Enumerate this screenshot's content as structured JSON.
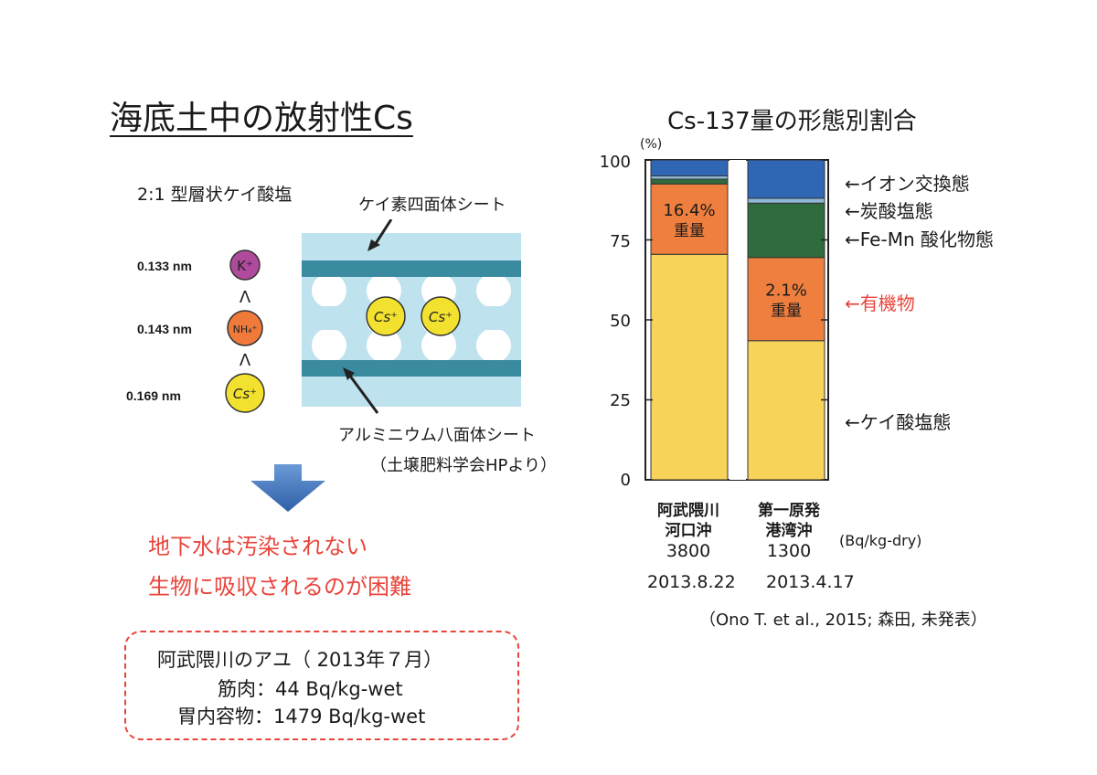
{
  "title": "海底土中の放射性Cs",
  "clay": {
    "subtitle": "2:1 型層状ケイ酸塩",
    "label_si": "ケイ素四面体シート",
    "label_al": "アルミニウム八面体シート",
    "source": "（土壌肥料学会HPより）",
    "ions": [
      {
        "size": "0.133 nm",
        "symbol": "K⁺",
        "color": "#b04a9c"
      },
      {
        "size": "0.143 nm",
        "symbol": "NH₄⁺",
        "color": "#ef7a3a"
      },
      {
        "size": "0.169 nm",
        "symbol": "Cs⁺",
        "color": "#f2e12e"
      }
    ],
    "order_symbol": "Λ",
    "interlayer_ions": [
      "Cs⁺",
      "Cs⁺"
    ],
    "colors": {
      "sheet": "#bfe2ef",
      "band": "#3a8aa0"
    }
  },
  "conclusions": [
    "地下水は汚染されない",
    "生物に吸収されるのが困難"
  ],
  "fish_box": {
    "title": "阿武隈川のアユ（ 2013年７月）",
    "lines": [
      "筋肉：44 Bq/kg-wet",
      "胃内容物：1479 Bq/kg-wet"
    ]
  },
  "chart_data": {
    "type": "bar",
    "stacked": true,
    "title": "Cs-137量の形態別割合",
    "ylabel": "(%)",
    "ylim": [
      0,
      100
    ],
    "yticks": [
      0,
      25,
      50,
      75,
      100
    ],
    "categories": [
      {
        "site": "阿武隈川\n河口沖",
        "value": "3800",
        "date": "2013.8.22"
      },
      {
        "site": "第一原発\n港湾沖",
        "value": "1300",
        "date": "2013.4.17"
      }
    ],
    "unit": "(Bq/kg-dry)",
    "series": [
      {
        "name": "ケイ酸塩態",
        "color": "#f7d35a",
        "values": [
          70.5,
          43.5
        ]
      },
      {
        "name": "有機物",
        "color": "#ef7f3e",
        "values": [
          22.0,
          26.0
        ],
        "labels": [
          "16.4%\n重量",
          "2.1%\n重量"
        ]
      },
      {
        "name": "Fe-Mn 酸化物態",
        "color": "#2f6b3c",
        "values": [
          1.5,
          17.0
        ]
      },
      {
        "name": "炭酸塩態",
        "color": "#8fb8d8",
        "values": [
          1.0,
          1.5
        ]
      },
      {
        "name": "イオン交換態",
        "color": "#2f67b4",
        "values": [
          5.0,
          12.0
        ]
      }
    ],
    "legend": [
      {
        "name": "イオン交換態",
        "y": 93.5,
        "highlight": false
      },
      {
        "name": "炭酸塩態",
        "y": 85,
        "highlight": false
      },
      {
        "name": "Fe-Mn 酸化物態",
        "y": 76,
        "highlight": false
      },
      {
        "name": "有機物",
        "y": 56,
        "highlight": true
      },
      {
        "name": "ケイ酸塩態",
        "y": 19,
        "highlight": false
      }
    ],
    "citation": "（Ono T. et al., 2015; 森田, 未発表）"
  }
}
